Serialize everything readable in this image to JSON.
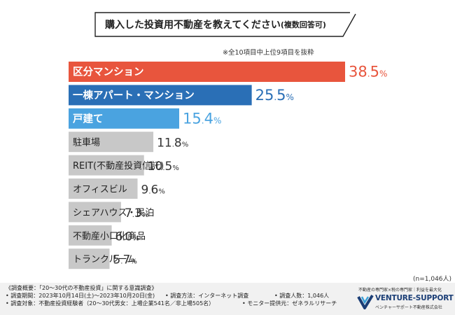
{
  "header": {
    "title": "購入した投資用不動産を教えてください",
    "title_suffix": "(複数回答可)",
    "note": "※全10項目中上位9項目を抜粋"
  },
  "chart_data": {
    "type": "bar",
    "orientation": "horizontal",
    "categories": [
      "区分マンション",
      "一棟アパート・マンション",
      "戸建て",
      "駐車場",
      "REIT(不動産投資信託)",
      "オフィスビル",
      "シェアハウス・民泊",
      "不動産小口化商品",
      "トランクルーム"
    ],
    "values": [
      38.5,
      25.5,
      15.4,
      11.8,
      10.5,
      9.6,
      7.3,
      6.0,
      5.7
    ],
    "value_suffix": "%",
    "colors": [
      "#e8553d",
      "#2a6fb6",
      "#4aa3e0",
      "#c8c8c8",
      "#c8c8c8",
      "#c8c8c8",
      "#c8c8c8",
      "#c8c8c8",
      "#c8c8c8"
    ],
    "value_label_colors": [
      "#e8553d",
      "#2a6fb6",
      "#4aa3e0",
      "#333333",
      "#333333",
      "#333333",
      "#333333",
      "#333333",
      "#333333"
    ],
    "xlim": [
      0,
      38.5
    ],
    "grid": false,
    "sample_size": "(n=1,046人)"
  },
  "footer": {
    "lines": [
      "《調査概要：「20〜30代の不動産投資」に関する意識調査》",
      "• 調査期間：2023年10月14日(土)〜2023年10月20日(金)",
      "• 調査方法：インターネット調査",
      "• 調査人数：1,046人",
      "• 調査対象：不動産投資経験者（20〜30代男女：上場企業541名／非上場505名）",
      "• モニター提供元：ゼネラルリサーチ"
    ]
  },
  "logo": {
    "tagline": "不動産の専門家×税の専門家｜利益を最大化",
    "name": "VENTURE-SUPPORT",
    "subtitle": "ベンチャーサポート不動産株式会社"
  },
  "colors": {
    "banner_border": "#222222",
    "logo_blue": "#1b3e76",
    "logo_cyan": "#3aa0d8"
  }
}
